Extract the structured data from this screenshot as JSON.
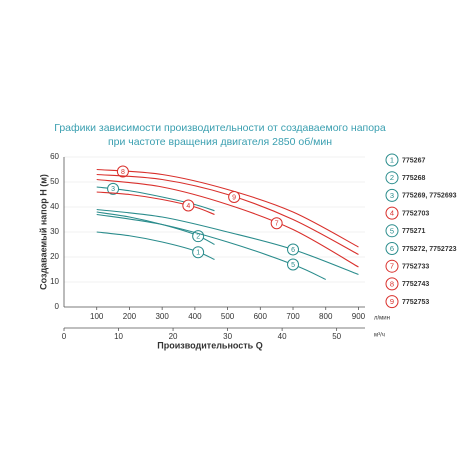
{
  "chart_data": {
    "type": "line",
    "title": [
      "Графики зависимости производительности от создаваемого напора",
      "при частоте вращения двигателя 2850 об/мин"
    ],
    "ylabel": "Создаваемый напор H (м)",
    "xlabel": "Производительность Q",
    "x_unit": "л/мин",
    "x2_unit": "м³/ч",
    "xlim": [
      0,
      920
    ],
    "xticks": [
      100,
      200,
      300,
      400,
      500,
      600,
      700,
      800,
      900
    ],
    "x2lim": [
      0,
      55.2
    ],
    "x2ticks": [
      0,
      10,
      20,
      30,
      40,
      50
    ],
    "ylim": [
      0,
      60
    ],
    "yticks": [
      0,
      10,
      20,
      30,
      40,
      50,
      60
    ],
    "grid": true,
    "series": [
      {
        "label": "1",
        "name": "775267",
        "color": "#2a8c8c",
        "x": [
          100,
          200,
          300,
          400,
          460
        ],
        "values": [
          30,
          28.5,
          26,
          22.5,
          19
        ]
      },
      {
        "label": "2",
        "name": "775268",
        "color": "#2a8c8c",
        "x": [
          100,
          200,
          300,
          400,
          460
        ],
        "values": [
          38,
          36,
          33,
          29,
          25
        ]
      },
      {
        "label": "3",
        "name": "775269, 7752693",
        "color": "#2a8c8c",
        "x": [
          100,
          200,
          300,
          400,
          460
        ],
        "values": [
          48,
          46.5,
          44,
          41,
          38.5
        ]
      },
      {
        "label": "4",
        "name": "7752703",
        "color": "#d9302c",
        "x": [
          100,
          200,
          300,
          400,
          460
        ],
        "values": [
          46,
          45,
          43,
          40,
          37
        ]
      },
      {
        "label": "5",
        "name": "775271",
        "color": "#2a8c8c",
        "x": [
          100,
          300,
          500,
          700,
          800
        ],
        "values": [
          37,
          33,
          26,
          17,
          11
        ]
      },
      {
        "label": "6",
        "name": "775272, 7752723",
        "color": "#2a8c8c",
        "x": [
          100,
          300,
          500,
          700,
          900
        ],
        "values": [
          39,
          36,
          30,
          23,
          13
        ]
      },
      {
        "label": "7",
        "name": "7752733",
        "color": "#d9302c",
        "x": [
          100,
          300,
          500,
          700,
          900
        ],
        "values": [
          51,
          48,
          41,
          31,
          16
        ]
      },
      {
        "label": "8",
        "name": "7752743",
        "color": "#d9302c",
        "x": [
          100,
          300,
          500,
          700,
          900
        ],
        "values": [
          55,
          53,
          47,
          38,
          24
        ]
      },
      {
        "label": "9",
        "name": "7752753",
        "color": "#d9302c",
        "x": [
          100,
          300,
          500,
          700,
          900
        ],
        "values": [
          53,
          51,
          45,
          35,
          21
        ]
      }
    ]
  }
}
